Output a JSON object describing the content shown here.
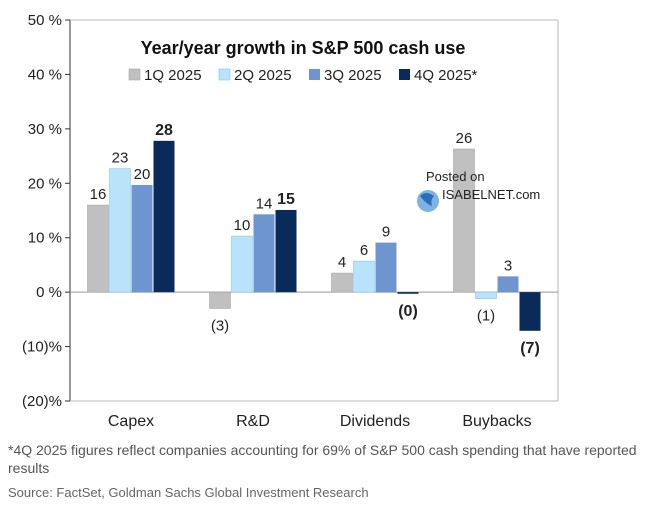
{
  "chart_data": {
    "type": "bar",
    "title": "Year/year growth in S&P 500 cash use",
    "categories": [
      "Capex",
      "R&D",
      "Dividends",
      "Buybacks"
    ],
    "series": [
      {
        "name": "1Q 2025",
        "color": "#c0c0c0",
        "values": [
          16,
          -3,
          3.5,
          26.3
        ],
        "labels": [
          "16",
          "(3)",
          "4",
          "26"
        ]
      },
      {
        "name": "2Q 2025",
        "color": "#b8e3fa",
        "values": [
          22.7,
          10.3,
          5.7,
          -1.2
        ],
        "labels": [
          "23",
          "10",
          "6",
          "(1)"
        ]
      },
      {
        "name": "3Q 2025",
        "color": "#6e95cf",
        "values": [
          19.7,
          14.3,
          9.1,
          2.9
        ],
        "labels": [
          "20",
          "14",
          "9",
          "3"
        ]
      },
      {
        "name": "4Q 2025*",
        "color": "#0a2b5a",
        "values": [
          27.8,
          15.1,
          -0.3,
          -7.1
        ],
        "labels": [
          "28",
          "15",
          "(0)",
          "(7)"
        ]
      }
    ],
    "ylim": [
      -20,
      50
    ],
    "yticks": [
      50,
      40,
      30,
      20,
      10,
      0,
      -10,
      -20
    ],
    "ytick_labels": [
      "50 %",
      "40 %",
      "30 %",
      "20 %",
      "10 %",
      "0 %",
      "(10)%",
      "(20)%"
    ],
    "xlabel": "",
    "ylabel": "",
    "legend_position": "top"
  },
  "watermark": {
    "line1": "Posted on",
    "line2": "ISABELNET.com"
  },
  "footnote": "*4Q 2025 figures reflect companies accounting for 69% of S&P 500 cash spending that have reported results",
  "source": "Source: FactSet, Goldman Sachs Global Investment Research"
}
